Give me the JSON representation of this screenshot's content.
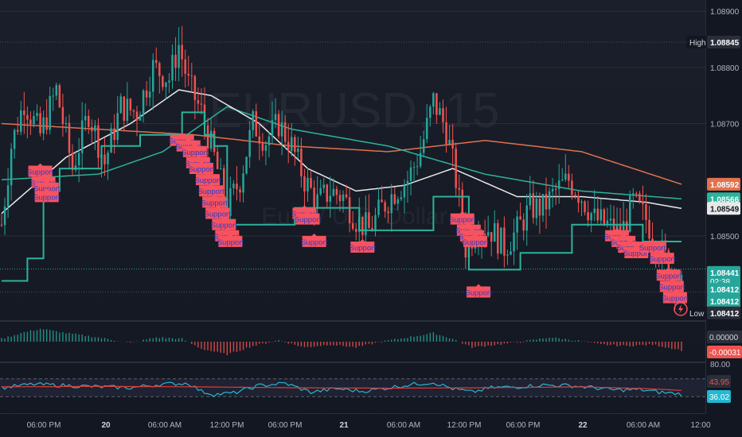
{
  "colors": {
    "background": "#131722",
    "up": "#26a69a",
    "down": "#ef5350",
    "grid": "#2a2e39",
    "axis_text": "#b2b5be",
    "ma_white": "#e8e8e8",
    "ma_orange": "#e0724d",
    "ma_teal": "#2bb39b",
    "trail_stop": "#2bb39b",
    "support_label": "#f7525f",
    "support_text": "#2a3cd0",
    "rsi": "#24b8d1",
    "rsi_ma": "#e53935",
    "hist_up": "#26a69a",
    "hist_down": "#ef5350"
  },
  "watermark": {
    "symbol": "EURUSD, 15",
    "name": "Euro / U.S. Dollar"
  },
  "support_label": "Support",
  "chart_data": {
    "type": "candlestick",
    "symbol": "EURUSD",
    "interval": "15",
    "ylim": [
      1.0835,
      1.0892
    ],
    "price_ticks": [
      "1.08900",
      "1.08800",
      "1.08700",
      "1.08500"
    ],
    "time_ticks": [
      "06:00 PM",
      "20",
      "06:00 AM",
      "12:00 PM",
      "06:00 PM",
      "21",
      "06:00 AM",
      "12:00 PM",
      "06:00 PM",
      "22",
      "06:00 AM",
      "12:00"
    ],
    "series_path": [
      {
        "i": 0,
        "p": 1.0852
      },
      {
        "i": 3,
        "p": 1.0866
      },
      {
        "i": 7,
        "p": 1.0874
      },
      {
        "i": 12,
        "p": 1.0868
      },
      {
        "i": 17,
        "p": 1.0876
      },
      {
        "i": 22,
        "p": 1.0862
      },
      {
        "i": 27,
        "p": 1.0872
      },
      {
        "i": 32,
        "p": 1.0863
      },
      {
        "i": 37,
        "p": 1.0873
      },
      {
        "i": 42,
        "p": 1.0872
      },
      {
        "i": 47,
        "p": 1.088
      },
      {
        "i": 52,
        "p": 1.0878
      },
      {
        "i": 55,
        "p": 1.0884
      },
      {
        "i": 58,
        "p": 1.0877
      },
      {
        "i": 62,
        "p": 1.0872
      },
      {
        "i": 66,
        "p": 1.0864
      },
      {
        "i": 70,
        "p": 1.0855
      },
      {
        "i": 74,
        "p": 1.086
      },
      {
        "i": 78,
        "p": 1.087
      },
      {
        "i": 82,
        "p": 1.0867
      },
      {
        "i": 86,
        "p": 1.087
      },
      {
        "i": 90,
        "p": 1.0866
      },
      {
        "i": 94,
        "p": 1.086
      },
      {
        "i": 98,
        "p": 1.0856
      },
      {
        "i": 102,
        "p": 1.0858
      },
      {
        "i": 106,
        "p": 1.0857
      },
      {
        "i": 110,
        "p": 1.0853
      },
      {
        "i": 114,
        "p": 1.0851
      },
      {
        "i": 118,
        "p": 1.0855
      },
      {
        "i": 122,
        "p": 1.0858
      },
      {
        "i": 126,
        "p": 1.086
      },
      {
        "i": 130,
        "p": 1.0865
      },
      {
        "i": 134,
        "p": 1.0874
      },
      {
        "i": 138,
        "p": 1.0869
      },
      {
        "i": 141,
        "p": 1.086
      },
      {
        "i": 144,
        "p": 1.0848
      },
      {
        "i": 148,
        "p": 1.0852
      },
      {
        "i": 152,
        "p": 1.0851
      },
      {
        "i": 156,
        "p": 1.0848
      },
      {
        "i": 160,
        "p": 1.0851
      },
      {
        "i": 164,
        "p": 1.0855
      },
      {
        "i": 168,
        "p": 1.0855
      },
      {
        "i": 172,
        "p": 1.0858
      },
      {
        "i": 176,
        "p": 1.086
      },
      {
        "i": 180,
        "p": 1.0857
      },
      {
        "i": 184,
        "p": 1.0853
      },
      {
        "i": 188,
        "p": 1.0852
      },
      {
        "i": 192,
        "p": 1.085
      },
      {
        "i": 196,
        "p": 1.0856
      },
      {
        "i": 200,
        "p": 1.0853
      },
      {
        "i": 204,
        "p": 1.0848
      },
      {
        "i": 208,
        "p": 1.0844
      },
      {
        "i": 211,
        "p": 1.0841
      }
    ],
    "ma_white": [
      {
        "i": 0,
        "p": 1.0854
      },
      {
        "i": 20,
        "p": 1.0864
      },
      {
        "i": 40,
        "p": 1.087
      },
      {
        "i": 55,
        "p": 1.0876
      },
      {
        "i": 65,
        "p": 1.0875
      },
      {
        "i": 80,
        "p": 1.087
      },
      {
        "i": 95,
        "p": 1.0862
      },
      {
        "i": 110,
        "p": 1.0858
      },
      {
        "i": 125,
        "p": 1.0859
      },
      {
        "i": 140,
        "p": 1.0862
      },
      {
        "i": 160,
        "p": 1.0857
      },
      {
        "i": 180,
        "p": 1.0857
      },
      {
        "i": 200,
        "p": 1.0856
      },
      {
        "i": 211,
        "p": 1.08549
      }
    ],
    "ma_orange": [
      {
        "i": 0,
        "p": 1.087
      },
      {
        "i": 30,
        "p": 1.0869
      },
      {
        "i": 60,
        "p": 1.0868
      },
      {
        "i": 90,
        "p": 1.0866
      },
      {
        "i": 120,
        "p": 1.0865
      },
      {
        "i": 150,
        "p": 1.0867
      },
      {
        "i": 180,
        "p": 1.0865
      },
      {
        "i": 211,
        "p": 1.08592
      }
    ],
    "ma_teal": [
      {
        "i": 0,
        "p": 1.086
      },
      {
        "i": 30,
        "p": 1.0861
      },
      {
        "i": 50,
        "p": 1.0865
      },
      {
        "i": 70,
        "p": 1.0873
      },
      {
        "i": 90,
        "p": 1.0869
      },
      {
        "i": 120,
        "p": 1.0866
      },
      {
        "i": 150,
        "p": 1.0861
      },
      {
        "i": 180,
        "p": 1.0858
      },
      {
        "i": 211,
        "p": 1.08566
      }
    ],
    "trail_stop": [
      {
        "i": 0,
        "p": 1.0842
      },
      {
        "i": 7,
        "p": 1.0842
      },
      {
        "i": 8,
        "p": 1.0846
      },
      {
        "i": 12,
        "p": 1.0846
      },
      {
        "i": 13,
        "p": 1.0858
      },
      {
        "i": 17,
        "p": 1.0858
      },
      {
        "i": 18,
        "p": 1.0862
      },
      {
        "i": 30,
        "p": 1.0862
      },
      {
        "i": 31,
        "p": 1.0866
      },
      {
        "i": 42,
        "p": 1.0866
      },
      {
        "i": 43,
        "p": 1.0868
      },
      {
        "i": 55,
        "p": 1.0868
      },
      {
        "i": 56,
        "p": 1.0872
      },
      {
        "i": 62,
        "p": 1.0872
      },
      {
        "i": 63,
        "p": 1.0868
      },
      {
        "i": 66,
        "p": 1.0866
      },
      {
        "i": 70,
        "p": 1.0852
      },
      {
        "i": 90,
        "p": 1.0852
      },
      {
        "i": 91,
        "p": 1.0855
      },
      {
        "i": 110,
        "p": 1.0855
      },
      {
        "i": 111,
        "p": 1.0851
      },
      {
        "i": 133,
        "p": 1.0851
      },
      {
        "i": 134,
        "p": 1.0857
      },
      {
        "i": 144,
        "p": 1.0857
      },
      {
        "i": 145,
        "p": 1.0844
      },
      {
        "i": 160,
        "p": 1.0844
      },
      {
        "i": 161,
        "p": 1.0847
      },
      {
        "i": 176,
        "p": 1.0847
      },
      {
        "i": 177,
        "p": 1.0852
      },
      {
        "i": 198,
        "p": 1.0852
      },
      {
        "i": 199,
        "p": 1.0849
      },
      {
        "i": 211,
        "p": 1.0849
      }
    ],
    "support_marks": [
      {
        "i": 12,
        "p": 1.08635
      },
      {
        "i": 13,
        "p": 1.08615
      },
      {
        "i": 14,
        "p": 1.08605
      },
      {
        "i": 14,
        "p": 1.0859
      },
      {
        "i": 56,
        "p": 1.0869
      },
      {
        "i": 58,
        "p": 1.0868
      },
      {
        "i": 60,
        "p": 1.0867
      },
      {
        "i": 61,
        "p": 1.0865
      },
      {
        "i": 62,
        "p": 1.0864
      },
      {
        "i": 64,
        "p": 1.0862
      },
      {
        "i": 65,
        "p": 1.086
      },
      {
        "i": 66,
        "p": 1.0858
      },
      {
        "i": 67,
        "p": 1.0856
      },
      {
        "i": 69,
        "p": 1.0854
      },
      {
        "i": 70,
        "p": 1.0852
      },
      {
        "i": 71,
        "p": 1.0851
      },
      {
        "i": 94,
        "p": 1.0856
      },
      {
        "i": 95,
        "p": 1.0855
      },
      {
        "i": 97,
        "p": 1.0851
      },
      {
        "i": 112,
        "p": 1.085
      },
      {
        "i": 143,
        "p": 1.0855
      },
      {
        "i": 145,
        "p": 1.0853
      },
      {
        "i": 146,
        "p": 1.0852
      },
      {
        "i": 147,
        "p": 1.0851
      },
      {
        "i": 148,
        "p": 1.0842
      },
      {
        "i": 191,
        "p": 1.0852
      },
      {
        "i": 193,
        "p": 1.0851
      },
      {
        "i": 195,
        "p": 1.085
      },
      {
        "i": 197,
        "p": 1.0849
      },
      {
        "i": 202,
        "p": 1.085
      },
      {
        "i": 205,
        "p": 1.0848
      },
      {
        "i": 207,
        "p": 1.0845
      },
      {
        "i": 208,
        "p": 1.0843
      },
      {
        "i": 209,
        "p": 1.0841
      }
    ],
    "price_labels": [
      {
        "label": "High",
        "value": "1.08845",
        "price": 1.08845,
        "bg": "#2a2e39",
        "fg": "#ffffff"
      },
      {
        "value": "1.08592",
        "price": 1.08592,
        "bg": "#e0724d",
        "fg": "#ffffff"
      },
      {
        "value": "1.08566",
        "price": 1.08566,
        "bg": "#2bb39b",
        "fg": "#ffffff"
      },
      {
        "value": "1.08549",
        "price": 1.08549,
        "bg": "#e8e8e8",
        "fg": "#131722"
      },
      {
        "value": "1.08441",
        "sub": "02:38",
        "price": 1.08435,
        "bg": "#26a69a",
        "fg": "#ffffff"
      },
      {
        "value": "1.08412",
        "price": 1.08405,
        "bg": "#26a69a",
        "fg": "#ffffff"
      },
      {
        "value": "1.08412",
        "price": 1.08384,
        "bg": "#26a69a",
        "fg": "#ffffff"
      },
      {
        "label": "Low",
        "value": "1.08412",
        "price": 1.08363,
        "bg": "#2a2e39",
        "fg": "#ffffff"
      }
    ],
    "macd": {
      "labels": [
        {
          "value": "0.00000",
          "bg": "#2a2e39",
          "fg": "#d1d4dc"
        },
        {
          "value": "-0.00031",
          "bg": "#ef5350",
          "fg": "#ffffff"
        }
      ],
      "hist_path": [
        {
          "i": 0,
          "v": 0.2
        },
        {
          "i": 6,
          "v": 0.6
        },
        {
          "i": 12,
          "v": 0.9
        },
        {
          "i": 20,
          "v": 0.6
        },
        {
          "i": 30,
          "v": 0.3
        },
        {
          "i": 40,
          "v": -0.1
        },
        {
          "i": 48,
          "v": 0.3
        },
        {
          "i": 56,
          "v": 0.2
        },
        {
          "i": 62,
          "v": -0.5
        },
        {
          "i": 70,
          "v": -0.9
        },
        {
          "i": 78,
          "v": -0.3
        },
        {
          "i": 86,
          "v": 0.1
        },
        {
          "i": 94,
          "v": -0.4
        },
        {
          "i": 102,
          "v": -0.2
        },
        {
          "i": 110,
          "v": -0.4
        },
        {
          "i": 118,
          "v": 0.0
        },
        {
          "i": 126,
          "v": 0.3
        },
        {
          "i": 134,
          "v": 0.6
        },
        {
          "i": 140,
          "v": 0.2
        },
        {
          "i": 146,
          "v": -0.4
        },
        {
          "i": 154,
          "v": -0.2
        },
        {
          "i": 162,
          "v": 0.0
        },
        {
          "i": 170,
          "v": 0.3
        },
        {
          "i": 178,
          "v": 0.1
        },
        {
          "i": 186,
          "v": -0.2
        },
        {
          "i": 194,
          "v": -0.3
        },
        {
          "i": 202,
          "v": -0.2
        },
        {
          "i": 211,
          "v": -0.6
        }
      ]
    },
    "rsi": {
      "top_tick": "80.00",
      "labels": [
        {
          "value": "43.95",
          "bg": "#2a2e39",
          "fg": "#ef5350"
        },
        {
          "value": "36.02",
          "bg": "#24b8d1",
          "fg": "#ffffff"
        }
      ],
      "path": [
        {
          "i": 0,
          "v": 50
        },
        {
          "i": 10,
          "v": 58
        },
        {
          "i": 20,
          "v": 55
        },
        {
          "i": 30,
          "v": 52
        },
        {
          "i": 40,
          "v": 50
        },
        {
          "i": 50,
          "v": 58
        },
        {
          "i": 58,
          "v": 60
        },
        {
          "i": 62,
          "v": 42
        },
        {
          "i": 66,
          "v": 35
        },
        {
          "i": 72,
          "v": 38
        },
        {
          "i": 80,
          "v": 55
        },
        {
          "i": 88,
          "v": 60
        },
        {
          "i": 96,
          "v": 40
        },
        {
          "i": 104,
          "v": 48
        },
        {
          "i": 112,
          "v": 42
        },
        {
          "i": 120,
          "v": 50
        },
        {
          "i": 128,
          "v": 58
        },
        {
          "i": 134,
          "v": 62
        },
        {
          "i": 140,
          "v": 48
        },
        {
          "i": 146,
          "v": 40
        },
        {
          "i": 152,
          "v": 50
        },
        {
          "i": 160,
          "v": 52
        },
        {
          "i": 168,
          "v": 56
        },
        {
          "i": 176,
          "v": 55
        },
        {
          "i": 184,
          "v": 50
        },
        {
          "i": 190,
          "v": 45
        },
        {
          "i": 198,
          "v": 46
        },
        {
          "i": 204,
          "v": 40
        },
        {
          "i": 211,
          "v": 36
        }
      ],
      "ma_path": [
        {
          "i": 0,
          "v": 52
        },
        {
          "i": 30,
          "v": 53
        },
        {
          "i": 60,
          "v": 52
        },
        {
          "i": 90,
          "v": 50
        },
        {
          "i": 120,
          "v": 49
        },
        {
          "i": 150,
          "v": 50
        },
        {
          "i": 180,
          "v": 52
        },
        {
          "i": 200,
          "v": 48
        },
        {
          "i": 211,
          "v": 44
        }
      ]
    }
  }
}
